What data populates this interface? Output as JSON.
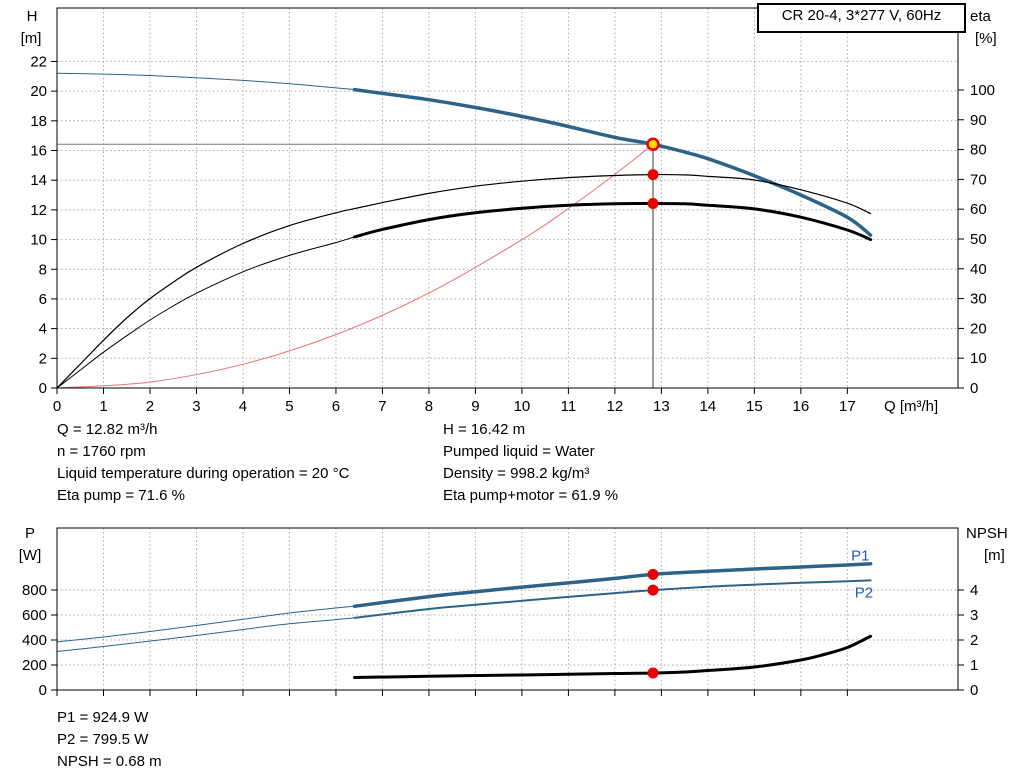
{
  "header": {
    "title": "CR 20-4, 3*277 V, 60Hz"
  },
  "info_block": {
    "left": [
      "Q = 12.82 m³/h",
      "n = 1760 rpm",
      "Liquid temperature during operation = 20 °C",
      "Eta pump = 71.6 %"
    ],
    "right": [
      "H = 16.42 m",
      "Pumped liquid = Water",
      "Density = 998.2 kg/m³",
      "Eta pump+motor = 61.9 %"
    ]
  },
  "result_block": {
    "lines": [
      "P1 = 924.9 W",
      "P2 = 799.5 W",
      "NPSH = 0.68 m"
    ]
  },
  "chart_data": [
    {
      "name": "hq-eta-chart",
      "type": "line",
      "axes": {
        "x": {
          "label": "Q [m³/h]",
          "min": 0,
          "max": 19.38,
          "ticks": [
            0,
            1,
            2,
            3,
            4,
            5,
            6,
            7,
            8,
            9,
            10,
            11,
            12,
            13,
            14,
            15,
            16,
            17
          ]
        },
        "left": {
          "title": "H",
          "unit": "[m]",
          "min": 0,
          "max": 25.6,
          "ticks": [
            0,
            2,
            4,
            6,
            8,
            10,
            12,
            14,
            16,
            18,
            20,
            22
          ]
        },
        "right": {
          "title": "eta",
          "unit": "[%]",
          "min": 0,
          "max": 127.5,
          "ticks": [
            0,
            10,
            20,
            30,
            40,
            50,
            60,
            70,
            80,
            90,
            100
          ]
        }
      },
      "series": [
        {
          "name": "hq-curve-extension",
          "axis": "left",
          "color": "#2d6389",
          "width": 1,
          "x": [
            0,
            1,
            2,
            3,
            4,
            5,
            6,
            6.4
          ],
          "y": [
            21.2,
            21.15,
            21.05,
            20.9,
            20.72,
            20.5,
            20.22,
            20.1
          ]
        },
        {
          "name": "hq-curve",
          "axis": "left",
          "color": "#2d6389",
          "width": 3.5,
          "interactable": true,
          "x": [
            6.4,
            7,
            8,
            9,
            10,
            11,
            12,
            12.82,
            13.5,
            14,
            15,
            16,
            17,
            17.5
          ],
          "y": [
            20.1,
            19.85,
            19.42,
            18.9,
            18.3,
            17.62,
            16.88,
            16.42,
            15.9,
            15.45,
            14.3,
            13.0,
            11.5,
            10.3
          ]
        },
        {
          "name": "system-curve",
          "axis": "left",
          "color": "#e87272",
          "width": 1,
          "x": [
            0,
            2,
            4,
            6,
            8,
            10,
            11,
            12,
            12.82
          ],
          "y": [
            0,
            0.4,
            1.6,
            3.6,
            6.39,
            9.99,
            12.09,
            14.39,
            16.42
          ]
        },
        {
          "name": "eta-pump-curve",
          "axis": "right",
          "color": "#000000",
          "width": 1.2,
          "x": [
            0,
            0.5,
            1,
            1.5,
            2,
            2.5,
            3,
            4,
            5,
            6,
            6.4,
            7,
            8,
            9,
            10,
            11,
            12,
            12.82,
            13.5,
            14,
            15,
            16,
            17,
            17.5
          ],
          "y": [
            0,
            8,
            16,
            23.5,
            30,
            35.5,
            40.5,
            48.5,
            54.5,
            58.8,
            60.2,
            62.2,
            65.3,
            67.7,
            69.4,
            70.6,
            71.3,
            71.6,
            71.5,
            71,
            69.8,
            66.5,
            62,
            58.5
          ]
        },
        {
          "name": "eta-pump-motor-extension",
          "axis": "right",
          "color": "#000000",
          "width": 1,
          "x": [
            0,
            0.5,
            1,
            1.5,
            2,
            2.5,
            3,
            4,
            5,
            6,
            6.4
          ],
          "y": [
            0,
            6,
            12,
            17.5,
            22.8,
            27.5,
            31.8,
            39,
            44.5,
            48.8,
            50.7
          ]
        },
        {
          "name": "eta-pump-motor-curve",
          "axis": "right",
          "color": "#000000",
          "width": 3,
          "x": [
            6.4,
            7,
            8,
            9,
            10,
            11,
            12,
            12.82,
            13.5,
            14,
            15,
            16,
            17,
            17.5
          ],
          "y": [
            50.7,
            53.2,
            56.5,
            58.8,
            60.3,
            61.3,
            61.8,
            61.9,
            61.8,
            61.3,
            60.1,
            57.3,
            53,
            49.8
          ]
        }
      ],
      "ref_lines": [
        {
          "name": "head-ref-line",
          "type": "h",
          "axis": "left",
          "value": 16.42,
          "x_to": 12.82,
          "color": "#7a7a7a"
        },
        {
          "name": "flow-ref-line",
          "type": "v",
          "axis": "left",
          "value": 12.82,
          "y_to": 16.42,
          "color": "#3c3c3c"
        }
      ],
      "markers": [
        {
          "name": "duty-point-marker",
          "axis": "left",
          "x": 12.82,
          "y": 16.42,
          "r": 5.5,
          "fill": "#ffd800",
          "stroke": "#e60000",
          "stroke_width": 2.5,
          "interactable": true
        },
        {
          "name": "eta-pump-point",
          "axis": "right",
          "x": 12.82,
          "y": 71.6,
          "r": 5.5,
          "fill": "#e60000"
        },
        {
          "name": "eta-pump-motor-point",
          "axis": "right",
          "x": 12.82,
          "y": 61.9,
          "r": 5.5,
          "fill": "#e60000"
        }
      ]
    },
    {
      "name": "power-npsh-chart",
      "type": "line",
      "axes": {
        "x": {
          "min": 0,
          "max": 19.38,
          "ticks": [
            0,
            1,
            2,
            3,
            4,
            5,
            6,
            7,
            8,
            9,
            10,
            11,
            12,
            13,
            14,
            15,
            16,
            17
          ]
        },
        "left": {
          "title": "P",
          "unit": "[W]",
          "min": 0,
          "max": 1296,
          "ticks": [
            0,
            200,
            400,
            600,
            800
          ]
        },
        "right": {
          "title": "NPSH",
          "unit": "[m]",
          "min": 0,
          "max": 6.48,
          "ticks": [
            0,
            1,
            2,
            3,
            4
          ]
        }
      },
      "series": [
        {
          "name": "p1-curve-extension",
          "axis": "left",
          "color": "#2d6389",
          "width": 1,
          "x": [
            0,
            1,
            2,
            3,
            4,
            5,
            6,
            6.4
          ],
          "y": [
            385,
            424,
            468,
            516,
            566,
            616,
            656,
            670
          ]
        },
        {
          "name": "p1-curve",
          "axis": "left",
          "color": "#2d6389",
          "width": 3.5,
          "x": [
            6.4,
            8,
            9,
            10,
            11,
            12,
            12.82,
            14,
            15,
            16,
            17,
            17.5
          ],
          "y": [
            670,
            747,
            786,
            823,
            857,
            893,
            924.9,
            950,
            968,
            984,
            1000,
            1010
          ]
        },
        {
          "name": "p2-curve-extension",
          "axis": "left",
          "color": "#2d6389",
          "width": 1,
          "x": [
            0,
            1,
            2,
            3,
            4,
            5,
            6,
            6.4
          ],
          "y": [
            308,
            348,
            391,
            436,
            484,
            530,
            563,
            577
          ]
        },
        {
          "name": "p2-curve",
          "axis": "left",
          "color": "#2d6389",
          "width": 2,
          "x": [
            6.4,
            8,
            9,
            10,
            11,
            12,
            12.82,
            14,
            15,
            16,
            17,
            17.5
          ],
          "y": [
            577,
            648,
            682,
            714,
            745,
            775,
            799.5,
            826,
            843,
            858,
            870,
            877
          ]
        },
        {
          "name": "npsh-curve",
          "axis": "right",
          "color": "#000000",
          "width": 3,
          "x": [
            6.4,
            8,
            10,
            11,
            12,
            12.82,
            13.5,
            14,
            15,
            16,
            16.5,
            17,
            17.5
          ],
          "y": [
            0.5,
            0.55,
            0.6,
            0.63,
            0.66,
            0.68,
            0.72,
            0.78,
            0.92,
            1.2,
            1.42,
            1.7,
            2.15
          ]
        }
      ],
      "markers": [
        {
          "name": "p1-point",
          "axis": "left",
          "x": 12.82,
          "y": 924.9,
          "r": 5.5,
          "fill": "#e60000"
        },
        {
          "name": "p2-point",
          "axis": "left",
          "x": 12.82,
          "y": 799.5,
          "r": 5.5,
          "fill": "#e60000"
        },
        {
          "name": "npsh-point",
          "axis": "right",
          "x": 12.82,
          "y": 0.68,
          "r": 5.5,
          "fill": "#e60000"
        }
      ],
      "annotations": [
        {
          "name": "p1-label",
          "text": "P1",
          "axis": "left",
          "x": 17.08,
          "y": 1035,
          "color": "#1f5fae"
        },
        {
          "name": "p2-label",
          "text": "P2",
          "axis": "left",
          "x": 17.16,
          "y": 742,
          "color": "#1f5fae"
        }
      ]
    }
  ]
}
